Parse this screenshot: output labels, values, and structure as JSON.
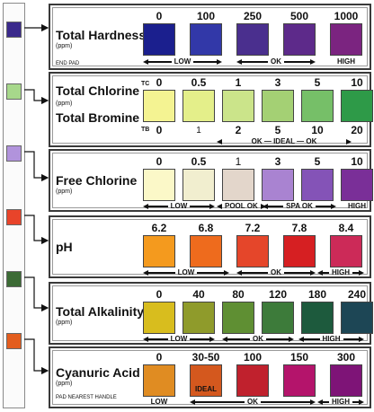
{
  "strip": {
    "pads": [
      "#3b2a8c",
      "#a7d88b",
      "#b193dc",
      "#e8442a",
      "#3c6b35",
      "#e35d1e"
    ]
  },
  "panels": [
    {
      "title": "Total Hardness",
      "subtitle": "(ppm)",
      "note": "END PAD",
      "values": [
        "0",
        "100",
        "250",
        "500",
        "1000"
      ],
      "colors": [
        "#1b1f8e",
        "#3238a8",
        "#4a2f8e",
        "#5d2a8a",
        "#7b2480"
      ],
      "ranges": [
        {
          "label": "LOW",
          "arrows": "both"
        },
        {
          "label": "OK",
          "arrows": "both"
        },
        {
          "label": "HIGH",
          "arrows": "none"
        }
      ]
    },
    {
      "title_top": "Total Chlorine",
      "title_bottom": "Total Bromine",
      "subtitle": "(ppm)",
      "row_top": "TC",
      "row_bottom": "TB",
      "values": [
        "0",
        "0.5",
        "1",
        "3",
        "5",
        "10"
      ],
      "values_bottom": [
        "0",
        "1",
        "2",
        "5",
        "10",
        "20"
      ],
      "colors": [
        "#f4f392",
        "#e4ef8a",
        "#cbe48a",
        "#a4d074",
        "#76bf68",
        "#2e9a48"
      ],
      "range_text": "OK — IDEAL — OK"
    },
    {
      "title": "Free Chlorine",
      "subtitle": "(ppm)",
      "values": [
        "0",
        "0.5",
        "1",
        "3",
        "5",
        "10"
      ],
      "colors": [
        "#fbf8c8",
        "#f1eecf",
        "#e3d6cb",
        "#a983d1",
        "#8453b7",
        "#7a2f98"
      ],
      "ranges": [
        {
          "label": "LOW",
          "arrows": "both"
        },
        {
          "label": "POOL OK",
          "arrows": "both"
        },
        {
          "label": "SPA OK",
          "arrows": "both"
        },
        {
          "label": "HIGH",
          "arrows": "none"
        }
      ]
    },
    {
      "title": "pH",
      "values": [
        "6.2",
        "6.8",
        "7.2",
        "7.8",
        "8.4"
      ],
      "colors": [
        "#f49a1e",
        "#ee6b1d",
        "#e5462a",
        "#d61f22",
        "#cc2a58"
      ],
      "ranges": [
        {
          "label": "LOW",
          "arrows": "both"
        },
        {
          "label": "OK",
          "arrows": "both"
        },
        {
          "label": "HIGH",
          "arrows": "both"
        }
      ]
    },
    {
      "title": "Total Alkalinity",
      "subtitle": "(ppm)",
      "values": [
        "0",
        "40",
        "80",
        "120",
        "180",
        "240"
      ],
      "colors": [
        "#d8bd1e",
        "#8f9b2b",
        "#5f8f33",
        "#3d7b3a",
        "#1d5a3d",
        "#1d4655"
      ],
      "ranges": [
        {
          "label": "LOW",
          "arrows": "both"
        },
        {
          "label": "OK",
          "arrows": "both"
        },
        {
          "label": "HIGH",
          "arrows": "both"
        }
      ]
    },
    {
      "title": "Cyanuric Acid",
      "subtitle": "(ppm)",
      "note": "PAD NEAREST HANDLE",
      "values": [
        "0",
        "30-50",
        "100",
        "150",
        "300"
      ],
      "colors": [
        "#e08c22",
        "#d4581e",
        "#c0212d",
        "#b4146b",
        "#7e1477"
      ],
      "swatch_label": "IDEAL",
      "low_label": "LOW",
      "ranges": [
        {
          "label": "OK",
          "arrows": "both"
        },
        {
          "label": "HIGH",
          "arrows": "both"
        }
      ]
    }
  ]
}
